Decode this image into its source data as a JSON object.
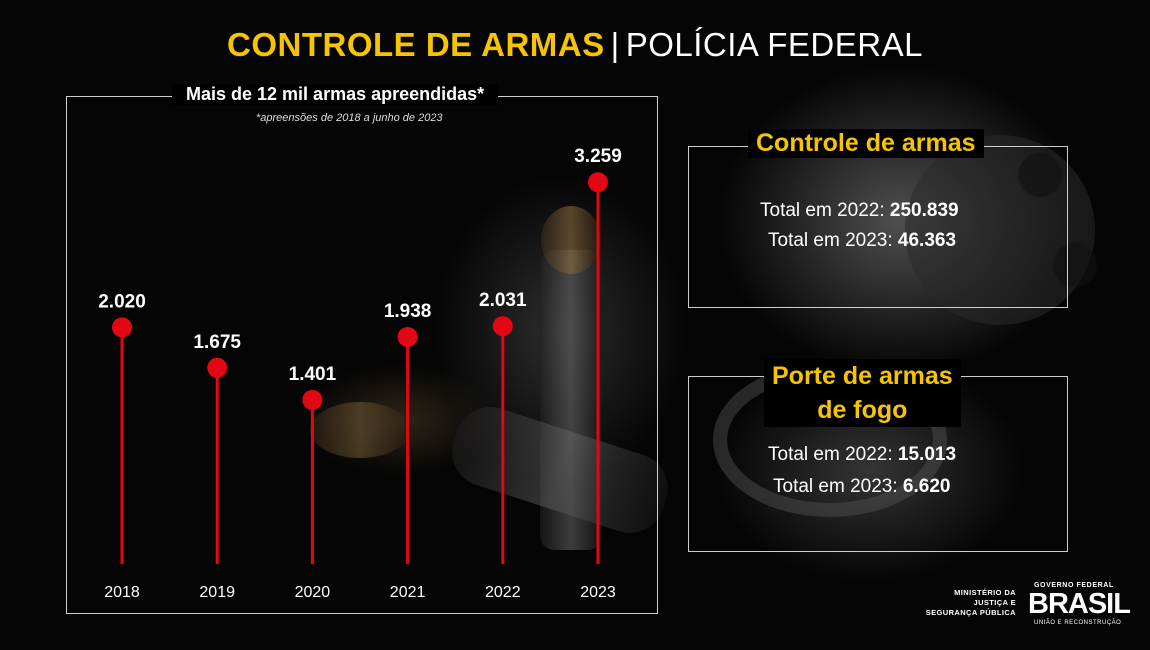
{
  "header": {
    "title_highlight": "CONTROLE DE ARMAS",
    "separator": "|",
    "title_rest": "POLÍCIA FEDERAL"
  },
  "colors": {
    "accent_yellow": "#f6c400",
    "marker_red": "#e30613",
    "border": "#cfcfcf"
  },
  "chart_data": {
    "type": "lollipop",
    "title": "Mais de 12 mil armas apreendidas*",
    "note": "*apreensões de 2018 a junho de 2023",
    "categories": [
      "2018",
      "2019",
      "2020",
      "2021",
      "2022",
      "2023"
    ],
    "values": [
      2020,
      1675,
      1401,
      1938,
      2031,
      3259
    ],
    "value_labels": [
      "2.020",
      "1.675",
      "1.401",
      "1.938",
      "2.031",
      "3.259"
    ],
    "ylim": [
      0,
      3500
    ],
    "xlabel": "",
    "ylabel": ""
  },
  "boxes": {
    "controle": {
      "title": "Controle de armas",
      "line1_label": "Total em 2022: ",
      "line1_value": "250.839",
      "line2_label": "Total em 2023: ",
      "line2_value": "46.363"
    },
    "porte": {
      "title_line1": "Porte de armas",
      "title_line2": "de fogo",
      "line1_label": "Total em 2022: ",
      "line1_value": "15.013",
      "line2_label": "Total em 2023: ",
      "line2_value": "6.620"
    }
  },
  "footer": {
    "ministry_line1": "MINISTÉRIO DA",
    "ministry_line2": "JUSTIÇA E",
    "ministry_line3": "SEGURANÇA PÚBLICA",
    "gov_top": "GOVERNO FEDERAL",
    "gov_brand": "BRASIL",
    "gov_bottom": "UNIÃO E RECONSTRUÇÃO"
  }
}
